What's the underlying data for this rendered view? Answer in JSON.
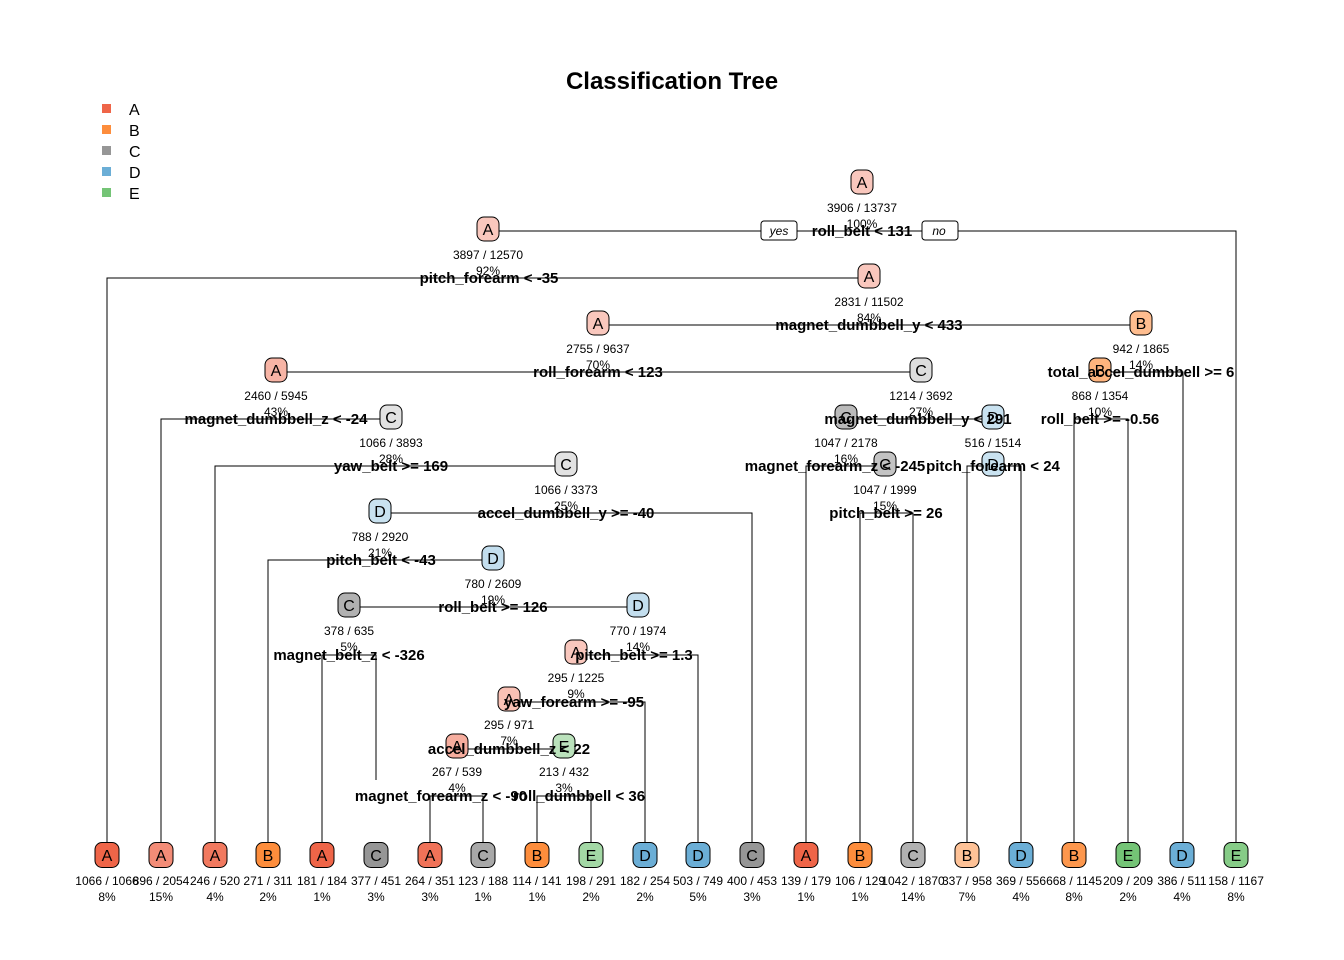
{
  "title": "Classification Tree",
  "legend": {
    "placement": "top-left",
    "items": [
      {
        "label": "A",
        "color": "#ef6548"
      },
      {
        "label": "B",
        "color": "#fd8d3c"
      },
      {
        "label": "C",
        "color": "#969696"
      },
      {
        "label": "D",
        "color": "#6baed6"
      },
      {
        "label": "E",
        "color": "#74c476"
      }
    ]
  },
  "branch_labels": {
    "yes": "yes",
    "no": "no"
  },
  "nodes": [
    {
      "id": "root",
      "cls": "A",
      "counts": "3906 / 13737",
      "pct": "100%",
      "split": "roll_belt < 131",
      "shade": 0.25
    },
    {
      "id": "n2",
      "cls": "A",
      "counts": "3897 / 12570",
      "pct": "92%",
      "split": "pitch_forearm < -35",
      "shade": 0.25
    },
    {
      "id": "n5",
      "cls": "A",
      "counts": "2831 / 11502",
      "pct": "84%",
      "split": "",
      "shade": 0.25
    },
    {
      "id": "n10",
      "cls": "A",
      "counts": "2755 / 9637",
      "pct": "70%",
      "split": "magnet_dumbbell_y < 433",
      "shade": 0.25
    },
    {
      "id": "n11",
      "cls": "B",
      "counts": "942 / 1865",
      "pct": "14%",
      "split": "total_accel_dumbbell >= 6",
      "shade": 0.5
    },
    {
      "id": "n20",
      "cls": "A",
      "counts": "2460 / 5945",
      "pct": "43%",
      "split": "roll_forearm < 123",
      "shade": 0.4
    },
    {
      "id": "n21",
      "cls": "C",
      "counts": "1214 / 3692",
      "pct": "27%",
      "split": "",
      "shade": 0.2
    },
    {
      "id": "n22",
      "cls": "B",
      "counts": "868 / 1354",
      "pct": "10%",
      "split": "roll_belt >= -0.56",
      "shade": 0.6
    },
    {
      "id": "n41",
      "cls": "C",
      "counts": "1066 / 3893",
      "pct": "28%",
      "split": "magnet_dumbbell_z < -24",
      "shade": 0.15
    },
    {
      "id": "n42",
      "cls": "C",
      "counts": "1047 / 2178",
      "pct": "16%",
      "split": "magnet_dumbbell_y < 291",
      "shade": 0.6
    },
    {
      "id": "n43",
      "cls": "D",
      "counts": "516 / 1514",
      "pct": "11%",
      "split": "",
      "shade": 0.25
    },
    {
      "id": "n82",
      "cls": "C",
      "counts": "1066 / 3373",
      "pct": "25%",
      "split": "yaw_belt >= 169",
      "shade": 0.15
    },
    {
      "id": "n85",
      "cls": "C",
      "counts": "1047 / 1999",
      "pct": "15%",
      "split": "magnet_forearm_z < -245",
      "shade": 0.5
    },
    {
      "id": "n86",
      "cls": "D",
      "counts": "",
      "pct": "",
      "split": "pitch_forearm < 24",
      "shade": 0.25
    },
    {
      "id": "n164",
      "cls": "D",
      "counts": "788 / 2920",
      "pct": "21%",
      "split": "accel_dumbbell_y >= -40",
      "shade": 0.25
    },
    {
      "id": "n171",
      "cls": "",
      "counts": "",
      "pct": "",
      "split": "pitch_belt >= 26",
      "shade": 0
    },
    {
      "id": "n328",
      "cls": "D",
      "counts": "780 / 2609",
      "pct": "19%",
      "split": "pitch_belt < -43",
      "shade": 0.3
    },
    {
      "id": "n657",
      "cls": "C",
      "counts": "378 / 635",
      "pct": "5%",
      "split": "roll_belt >= 126",
      "shade": 0.7
    },
    {
      "id": "n658",
      "cls": "D",
      "counts": "770 / 1974",
      "pct": "14%",
      "split": "",
      "shade": 0.3
    },
    {
      "id": "n1314",
      "cls": "",
      "counts": "",
      "pct": "",
      "split": "magnet_belt_z < -326",
      "shade": 0
    },
    {
      "id": "n1316",
      "cls": "A",
      "counts": "295 / 1225",
      "pct": "9%",
      "split": "pitch_belt >= 1.3",
      "shade": 0.25
    },
    {
      "id": "n2632",
      "cls": "A",
      "counts": "295 / 971",
      "pct": "7%",
      "split": "yaw_forearm >= -95",
      "shade": 0.3
    },
    {
      "id": "n5264",
      "cls": "A",
      "counts": "267 / 539",
      "pct": "4%",
      "split": "accel_dumbbell_z < 22",
      "shade": 0.45
    },
    {
      "id": "n5265",
      "cls": "E",
      "counts": "213 / 432",
      "pct": "3%",
      "split": "roll_dumbbell < 36",
      "shade": 0.4
    },
    {
      "id": "n10528",
      "cls": "",
      "counts": "",
      "pct": "",
      "split": "magnet_forearm_z < -90",
      "shade": 0
    }
  ],
  "leaves": [
    {
      "cls": "A",
      "counts": "1066 / 1066",
      "pct": "8%",
      "shade": 1.0
    },
    {
      "cls": "A",
      "counts": "896 / 2054",
      "pct": "15%",
      "shade": 0.7
    },
    {
      "cls": "A",
      "counts": "246 / 520",
      "pct": "4%",
      "shade": 0.85
    },
    {
      "cls": "B",
      "counts": "271 / 311",
      "pct": "2%",
      "shade": 1.0
    },
    {
      "cls": "A",
      "counts": "181 / 184",
      "pct": "1%",
      "shade": 1.0
    },
    {
      "cls": "C",
      "counts": "377 / 451",
      "pct": "3%",
      "shade": 1.0
    },
    {
      "cls": "A",
      "counts": "264 / 351",
      "pct": "3%",
      "shade": 0.9
    },
    {
      "cls": "C",
      "counts": "123 / 188",
      "pct": "1%",
      "shade": 0.8
    },
    {
      "cls": "B",
      "counts": "114 / 141",
      "pct": "1%",
      "shade": 1.0
    },
    {
      "cls": "E",
      "counts": "198 / 291",
      "pct": "2%",
      "shade": 0.6
    },
    {
      "cls": "D",
      "counts": "182 / 254",
      "pct": "2%",
      "shade": 1.0
    },
    {
      "cls": "D",
      "counts": "503 / 749",
      "pct": "5%",
      "shade": 1.0
    },
    {
      "cls": "C",
      "counts": "400 / 453",
      "pct": "3%",
      "shade": 1.0
    },
    {
      "cls": "A",
      "counts": "139 / 179",
      "pct": "1%",
      "shade": 1.0
    },
    {
      "cls": "B",
      "counts": "106 / 129",
      "pct": "1%",
      "shade": 1.0
    },
    {
      "cls": "C",
      "counts": "1042 / 1870",
      "pct": "14%",
      "shade": 0.7
    },
    {
      "cls": "B",
      "counts": "337 / 958",
      "pct": "7%",
      "shade": 0.45
    },
    {
      "cls": "D",
      "counts": "369 / 556",
      "pct": "4%",
      "shade": 1.0
    },
    {
      "cls": "B",
      "counts": "668 / 1145",
      "pct": "8%",
      "shade": 0.9
    },
    {
      "cls": "E",
      "counts": "209 / 209",
      "pct": "2%",
      "shade": 1.0
    },
    {
      "cls": "D",
      "counts": "386 / 511",
      "pct": "4%",
      "shade": 1.0
    },
    {
      "cls": "E",
      "counts": "158 / 1167",
      "pct": "8%",
      "shade": 0.85
    }
  ]
}
